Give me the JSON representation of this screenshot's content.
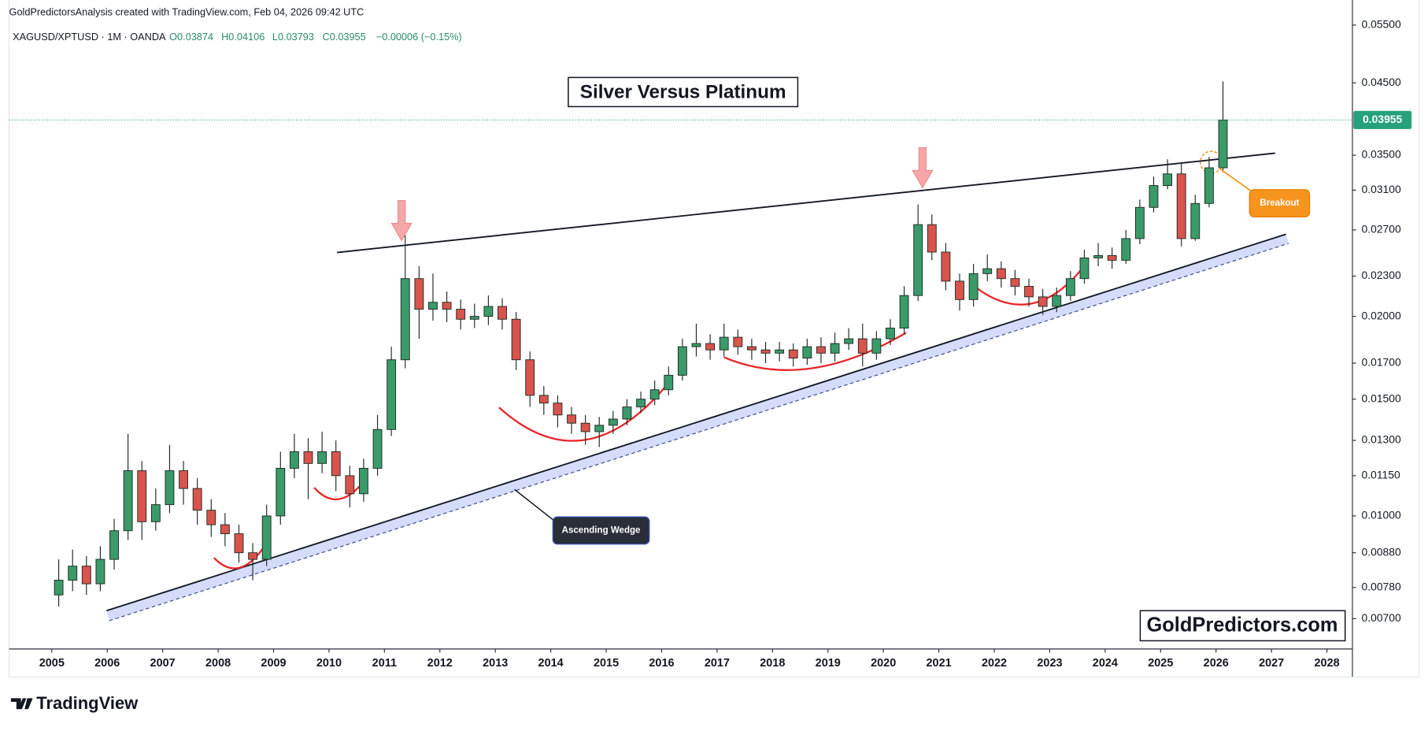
{
  "chart_data": {
    "type": "candlestick",
    "header": "GoldPredictorsAnalysis created with TradingView.com, Feb 04, 2026 09:42 UTC",
    "symbol": "XAGUSD/XPTUSD · 1M · OANDA",
    "ohlc": [
      "O0.03874",
      "H0.04106",
      "L0.03793",
      "C0.03955",
      "−0.00006 (−0.15%)"
    ],
    "title": "Silver Versus Platinum",
    "watermark": "GoldPredictors.com",
    "annotations": [
      "Ascending Wedge",
      "Breakout"
    ],
    "logo": "TradingView",
    "log_scale": true,
    "grid": false,
    "up_color": "#3a9a6a",
    "down_color": "#d9544c",
    "last_price": 0.03955,
    "last_price_color": "#26a17b",
    "x": [
      2005.125,
      2005.375,
      2005.625,
      2005.875,
      2006.125,
      2006.375,
      2006.625,
      2006.875,
      2007.125,
      2007.375,
      2007.625,
      2007.875,
      2008.125,
      2008.375,
      2008.625,
      2008.875,
      2009.125,
      2009.375,
      2009.625,
      2009.875,
      2010.125,
      2010.375,
      2010.625,
      2010.875,
      2011.125,
      2011.375,
      2011.625,
      2011.875,
      2012.125,
      2012.375,
      2012.625,
      2012.875,
      2013.125,
      2013.375,
      2013.625,
      2013.875,
      2014.125,
      2014.375,
      2014.625,
      2014.875,
      2015.125,
      2015.375,
      2015.625,
      2015.875,
      2016.125,
      2016.375,
      2016.625,
      2016.875,
      2017.125,
      2017.375,
      2017.625,
      2017.875,
      2018.125,
      2018.375,
      2018.625,
      2018.875,
      2019.125,
      2019.375,
      2019.625,
      2019.875,
      2020.125,
      2020.375,
      2020.625,
      2020.875,
      2021.125,
      2021.375,
      2021.625,
      2021.875,
      2022.125,
      2022.375,
      2022.625,
      2022.875,
      2023.125,
      2023.375,
      2023.625,
      2023.875,
      2024.125,
      2024.375,
      2024.625,
      2024.875,
      2025.125,
      2025.375,
      2025.625,
      2025.875,
      2026.125
    ],
    "open": [
      0.0076,
      0.008,
      0.0084,
      0.0079,
      0.0086,
      0.0095,
      0.0117,
      0.0098,
      0.0104,
      0.0117,
      0.011,
      0.0102,
      0.0097,
      0.0094,
      0.0088,
      0.0086,
      0.01,
      0.0118,
      0.0125,
      0.012,
      0.0125,
      0.0115,
      0.0108,
      0.0118,
      0.0135,
      0.0172,
      0.0228,
      0.0205,
      0.021,
      0.0205,
      0.0198,
      0.02,
      0.0207,
      0.0198,
      0.0172,
      0.0152,
      0.0148,
      0.0142,
      0.0138,
      0.0134,
      0.0137,
      0.014,
      0.0146,
      0.015,
      0.0155,
      0.0163,
      0.018,
      0.0182,
      0.0178,
      0.0186,
      0.018,
      0.0178,
      0.0176,
      0.0178,
      0.0173,
      0.018,
      0.0176,
      0.0182,
      0.0185,
      0.0176,
      0.0185,
      0.0192,
      0.0215,
      0.0275,
      0.025,
      0.0226,
      0.0212,
      0.0232,
      0.0236,
      0.0228,
      0.0222,
      0.0214,
      0.0207,
      0.0215,
      0.0228,
      0.0245,
      0.0247,
      0.0243,
      0.0262,
      0.0292,
      0.0315,
      0.0328,
      0.0262,
      0.0296,
      0.0335
    ],
    "high": [
      0.0086,
      0.0089,
      0.0087,
      0.009,
      0.0099,
      0.0133,
      0.0121,
      0.011,
      0.0128,
      0.0121,
      0.0114,
      0.0106,
      0.0101,
      0.0097,
      0.0091,
      0.0104,
      0.0125,
      0.0133,
      0.0131,
      0.0134,
      0.013,
      0.0119,
      0.0122,
      0.0142,
      0.018,
      0.0265,
      0.0238,
      0.0232,
      0.0218,
      0.0212,
      0.0209,
      0.0215,
      0.0213,
      0.0203,
      0.0177,
      0.0157,
      0.0152,
      0.0146,
      0.0142,
      0.0141,
      0.0144,
      0.015,
      0.0154,
      0.016,
      0.0168,
      0.0185,
      0.0195,
      0.0188,
      0.0195,
      0.0191,
      0.0185,
      0.0183,
      0.0183,
      0.0182,
      0.0185,
      0.0186,
      0.0189,
      0.0192,
      0.0195,
      0.019,
      0.0198,
      0.0222,
      0.0295,
      0.0285,
      0.0258,
      0.0232,
      0.024,
      0.0248,
      0.0242,
      0.0235,
      0.0228,
      0.022,
      0.0221,
      0.0234,
      0.0252,
      0.0258,
      0.0254,
      0.027,
      0.03,
      0.0325,
      0.0345,
      0.034,
      0.0305,
      0.0348,
      0.04523
    ],
    "low": [
      0.0073,
      0.0077,
      0.0076,
      0.0077,
      0.0083,
      0.0092,
      0.0092,
      0.0095,
      0.0101,
      0.0104,
      0.0097,
      0.0093,
      0.009,
      0.0085,
      0.008,
      0.0084,
      0.0097,
      0.0114,
      0.0106,
      0.0116,
      0.0109,
      0.0103,
      0.0105,
      0.0115,
      0.0132,
      0.0167,
      0.0185,
      0.0197,
      0.0196,
      0.0191,
      0.0192,
      0.0194,
      0.0191,
      0.0166,
      0.0146,
      0.0142,
      0.0136,
      0.0133,
      0.0128,
      0.0127,
      0.0133,
      0.0137,
      0.0143,
      0.0147,
      0.0152,
      0.016,
      0.0174,
      0.0172,
      0.0174,
      0.0175,
      0.0172,
      0.017,
      0.0171,
      0.0168,
      0.0169,
      0.017,
      0.0171,
      0.0178,
      0.0168,
      0.0172,
      0.0181,
      0.0188,
      0.0211,
      0.0243,
      0.0219,
      0.0204,
      0.0207,
      0.0226,
      0.0221,
      0.0215,
      0.0207,
      0.0201,
      0.0203,
      0.0211,
      0.0224,
      0.0238,
      0.0236,
      0.024,
      0.0257,
      0.0287,
      0.0311,
      0.0255,
      0.026,
      0.0292,
      0.033
    ],
    "close": [
      0.008,
      0.0084,
      0.0079,
      0.0086,
      0.0095,
      0.0117,
      0.0098,
      0.0104,
      0.0117,
      0.011,
      0.0102,
      0.0097,
      0.0094,
      0.0088,
      0.0086,
      0.01,
      0.0118,
      0.0125,
      0.012,
      0.0125,
      0.0115,
      0.0108,
      0.0118,
      0.0135,
      0.0172,
      0.0228,
      0.0205,
      0.021,
      0.0205,
      0.0198,
      0.02,
      0.0207,
      0.0198,
      0.0172,
      0.0152,
      0.0148,
      0.0142,
      0.0138,
      0.0134,
      0.0137,
      0.014,
      0.0146,
      0.015,
      0.0155,
      0.0163,
      0.018,
      0.0182,
      0.0178,
      0.0186,
      0.018,
      0.0178,
      0.0176,
      0.0178,
      0.0173,
      0.018,
      0.0176,
      0.0182,
      0.0185,
      0.0176,
      0.0185,
      0.0192,
      0.0215,
      0.0275,
      0.025,
      0.0226,
      0.0212,
      0.0232,
      0.0236,
      0.0228,
      0.0222,
      0.0214,
      0.0207,
      0.0215,
      0.0228,
      0.0245,
      0.0247,
      0.0243,
      0.0262,
      0.0292,
      0.0315,
      0.0328,
      0.0262,
      0.0296,
      0.0335,
      0.03955
    ],
    "xlim": [
      2004.23,
      2028.46
    ],
    "xticks": [
      2005,
      2006,
      2007,
      2008,
      2009,
      2010,
      2011,
      2012,
      2013,
      2014,
      2015,
      2016,
      2017,
      2018,
      2019,
      2020,
      2021,
      2022,
      2023,
      2024,
      2025,
      2026,
      2027,
      2028
    ],
    "ylim": [
      0.0063,
      0.06
    ],
    "yticks": [
      {
        "value": 0.007,
        "label": "0.00700"
      },
      {
        "value": 0.0078,
        "label": "0.00780"
      },
      {
        "value": 0.0088,
        "label": "0.00880"
      },
      {
        "value": 0.01,
        "label": "0.01000"
      },
      {
        "value": 0.0115,
        "label": "0.01150"
      },
      {
        "value": 0.013,
        "label": "0.01300"
      },
      {
        "value": 0.015,
        "label": "0.01500"
      },
      {
        "value": 0.017,
        "label": "0.01700"
      },
      {
        "value": 0.02,
        "label": "0.02000"
      },
      {
        "value": 0.023,
        "label": "0.02300"
      },
      {
        "value": 0.027,
        "label": "0.02700"
      },
      {
        "value": 0.031,
        "label": "0.03100"
      },
      {
        "value": 0.035,
        "label": "0.03500"
      },
      {
        "value": 0.045,
        "label": "0.04500"
      },
      {
        "value": 0.055,
        "label": "0.05500"
      }
    ]
  }
}
